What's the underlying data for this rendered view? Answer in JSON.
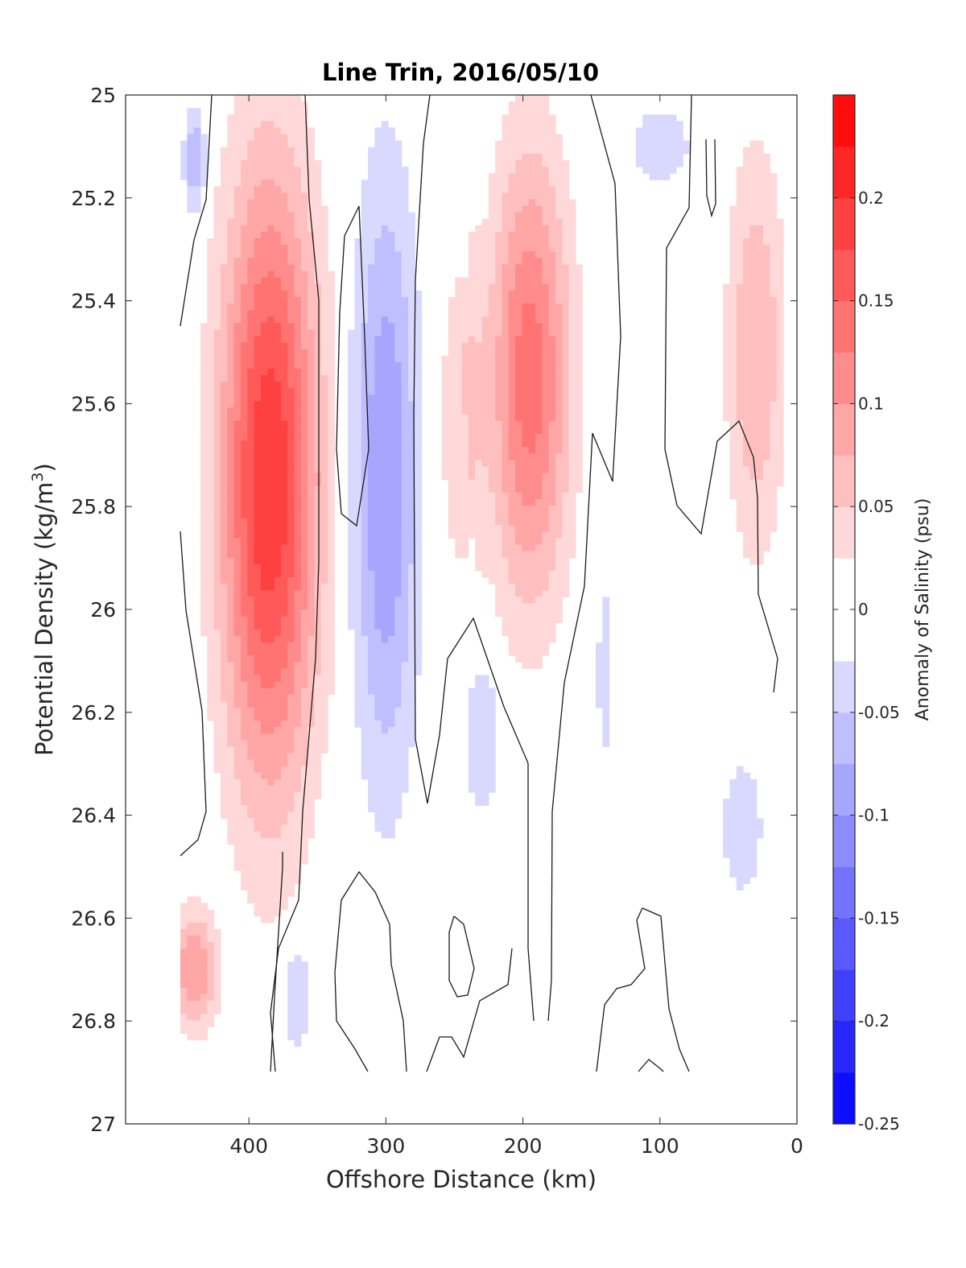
{
  "chart_data": {
    "type": "heatmap",
    "subtype": "filled-contour",
    "title": "Line Trin, 2016/05/10",
    "xlabel": "Offshore Distance (km)",
    "ylabel_main": "Potential Density (kg/m",
    "ylabel_sup": "3",
    "ylabel_close": ")",
    "xlim": [
      490,
      0
    ],
    "ylim": [
      25,
      27
    ],
    "x_reversed": true,
    "y_reversed": true,
    "xticks": [
      400,
      300,
      200,
      100,
      0
    ],
    "xtick_labels": [
      "400",
      "300",
      "200",
      "100",
      "0"
    ],
    "yticks": [
      25,
      25.2,
      25.4,
      25.6,
      25.8,
      26,
      26.2,
      26.4,
      26.6,
      26.8,
      27
    ],
    "ytick_labels": [
      "25",
      "25.2",
      "25.4",
      "25.6",
      "25.8",
      "26",
      "26.2",
      "26.4",
      "26.6",
      "26.8",
      "27"
    ],
    "colorbar": {
      "label": "Anomaly of Salinity (psu)",
      "range": [
        -0.25,
        0.25
      ],
      "levels": [
        -0.25,
        -0.225,
        -0.2,
        -0.175,
        -0.15,
        -0.125,
        -0.1,
        -0.075,
        -0.05,
        -0.025,
        0.025,
        0.05,
        0.075,
        0.1,
        0.125,
        0.15,
        0.175,
        0.2,
        0.225,
        0.25
      ],
      "ticks": [
        0.2,
        0.15,
        0.1,
        0.05,
        0,
        -0.05,
        -0.1,
        -0.15,
        -0.2,
        -0.25
      ],
      "tick_labels": [
        "0.2",
        "0.15",
        "0.1",
        "0.05",
        "0",
        "-0.05",
        "-0.1",
        "-0.15",
        "-0.2",
        "-0.25"
      ],
      "color_low": "#0000ff",
      "color_mid": "#ffffff",
      "color_high": "#ff0000"
    },
    "features": [
      {
        "name": "salty-core-380km",
        "x_center": 385,
        "x_width": 90,
        "sigma_top": 25.0,
        "sigma_bottom": 26.5,
        "peak": 0.2
      },
      {
        "name": "salty-core-195km",
        "x_center": 195,
        "x_width": 75,
        "sigma_top": 25.0,
        "sigma_bottom": 26.1,
        "peak": 0.14
      },
      {
        "name": "salty-band-245km",
        "x_center": 245,
        "x_width": 40,
        "sigma_top": 25.2,
        "sigma_bottom": 26.05,
        "peak": 0.05
      },
      {
        "name": "salty-nearshore",
        "x_center": 30,
        "x_width": 55,
        "sigma_top": 25.0,
        "sigma_bottom": 26.0,
        "peak": 0.075
      },
      {
        "name": "salty-deep-440km",
        "x_center": 440,
        "x_width": 45,
        "sigma_top": 26.55,
        "sigma_bottom": 26.85,
        "peak": 0.1
      },
      {
        "name": "fresh-band-300km",
        "x_center": 300,
        "x_width": 60,
        "sigma_top": 25.0,
        "sigma_bottom": 26.5,
        "peak": -0.1
      },
      {
        "name": "fresh-surface-440km",
        "x_center": 440,
        "x_width": 20,
        "sigma_top": 25.0,
        "sigma_bottom": 25.25,
        "peak": -0.075
      },
      {
        "name": "fresh-surface-100km",
        "x_center": 100,
        "x_width": 60,
        "sigma_top": 25.0,
        "sigma_bottom": 25.2,
        "peak": -0.05
      },
      {
        "name": "fresh-patch-230km",
        "x_center": 230,
        "x_width": 35,
        "sigma_top": 26.05,
        "sigma_bottom": 26.45,
        "peak": -0.05
      },
      {
        "name": "fresh-patch-140km",
        "x_center": 140,
        "x_width": 15,
        "sigma_top": 25.9,
        "sigma_bottom": 26.35,
        "peak": -0.05
      },
      {
        "name": "fresh-patch-40km",
        "x_center": 40,
        "x_width": 40,
        "sigma_top": 26.25,
        "sigma_bottom": 26.6,
        "peak": -0.05
      },
      {
        "name": "fresh-deep-365km",
        "x_center": 365,
        "x_width": 25,
        "sigma_top": 26.62,
        "sigma_bottom": 26.9,
        "peak": -0.05
      }
    ]
  }
}
